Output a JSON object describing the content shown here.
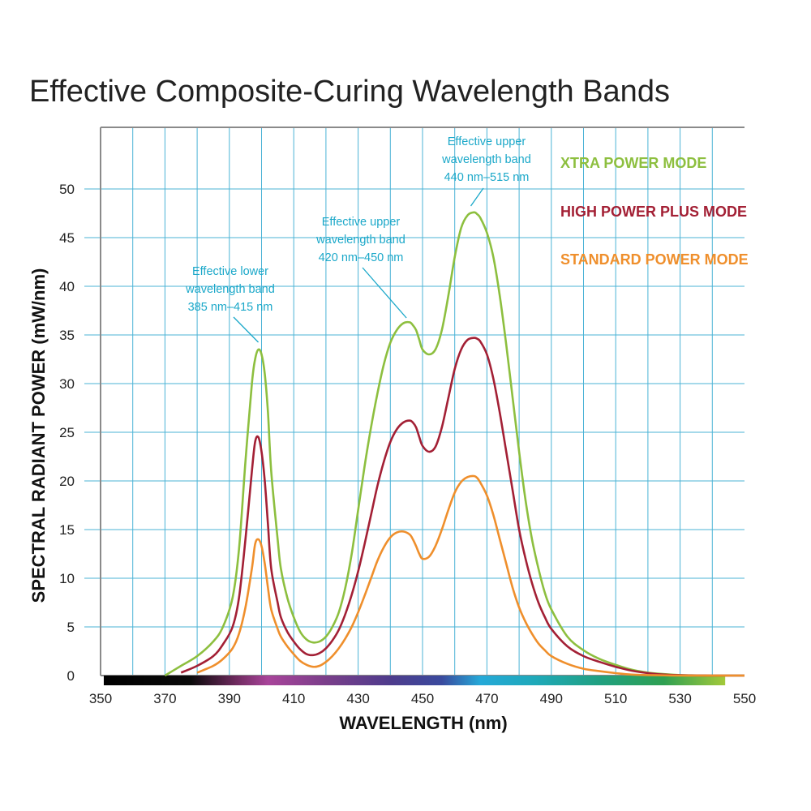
{
  "chart_data": {
    "type": "line",
    "title": "Effective Composite-Curing Wavelength Bands",
    "xlabel": "WAVELENGTH (nm)",
    "ylabel": "SPECTRAL RADIANT POWER (mW/nm)",
    "xlim": [
      350,
      550
    ],
    "ylim": [
      0,
      55
    ],
    "x_ticks": [
      "350",
      "370",
      "390",
      "410",
      "430",
      "450",
      "470",
      "490",
      "510",
      "530",
      "550"
    ],
    "y_ticks": [
      "0",
      "5",
      "10",
      "15",
      "20",
      "25",
      "30",
      "35",
      "40",
      "45",
      "50"
    ],
    "grid": true,
    "legend_position": "top-right",
    "colors": {
      "grid": "#4bb3d6",
      "axis": "#8a8a8a",
      "annotation": "#1ba8c9"
    },
    "series": [
      {
        "name": "XTRA POWER MODE",
        "color": "#8dbf3f",
        "x": [
          370,
          375,
          380,
          385,
          388,
          391,
          393,
          395,
          397,
          398,
          399,
          400,
          401,
          402,
          403,
          405,
          406,
          408,
          410,
          412,
          414,
          416,
          418,
          420,
          422,
          424,
          426,
          428,
          430,
          432,
          434,
          436,
          438,
          440,
          442,
          444,
          446,
          447,
          448,
          449,
          450,
          452,
          454,
          456,
          458,
          460,
          462,
          464,
          466,
          467,
          468,
          470,
          472,
          474,
          476,
          478,
          480,
          482,
          484,
          486,
          488,
          490,
          495,
          500,
          505,
          510,
          515,
          520,
          525,
          530,
          535,
          540,
          545,
          550
        ],
        "y": [
          0,
          1,
          2,
          3.5,
          5,
          8,
          13,
          22,
          30,
          32.5,
          33.5,
          33,
          31,
          27,
          21,
          14,
          11,
          8,
          6,
          4.5,
          3.7,
          3.4,
          3.5,
          4,
          5,
          6.5,
          9,
          12.5,
          17,
          21.5,
          25.5,
          29,
          32,
          34.2,
          35.5,
          36.2,
          36.3,
          36,
          35.5,
          34.5,
          33.5,
          33,
          33.5,
          35.5,
          39,
          43,
          46,
          47.3,
          47.6,
          47.4,
          47,
          45.5,
          43,
          39,
          34,
          28.5,
          23,
          18,
          14,
          11,
          8.5,
          6.8,
          4,
          2.6,
          1.7,
          1.1,
          0.6,
          0.3,
          0.15,
          0.05,
          0.02,
          0,
          0,
          0
        ]
      },
      {
        "name": "HIGH POWER PLUS MODE",
        "color": "#a32035",
        "x": [
          375,
          380,
          385,
          388,
          391,
          393,
          395,
          397,
          398,
          399,
          400,
          401,
          402,
          403,
          405,
          406,
          408,
          410,
          412,
          414,
          416,
          418,
          420,
          422,
          424,
          426,
          428,
          430,
          432,
          434,
          436,
          438,
          440,
          442,
          444,
          446,
          447,
          448,
          449,
          450,
          452,
          454,
          456,
          458,
          460,
          462,
          464,
          466,
          467,
          468,
          470,
          472,
          474,
          476,
          478,
          480,
          482,
          484,
          486,
          488,
          490,
          495,
          500,
          505,
          510,
          515,
          520,
          525,
          530,
          535,
          540,
          545,
          550
        ],
        "y": [
          0.3,
          1,
          2,
          3.2,
          5,
          8,
          14,
          21,
          24,
          24.5,
          23,
          20,
          15.5,
          11,
          7.5,
          6,
          4.5,
          3.5,
          2.7,
          2.2,
          2.1,
          2.3,
          2.8,
          3.6,
          4.7,
          6.3,
          8.3,
          10.7,
          13.5,
          16.5,
          19.5,
          22,
          24,
          25.3,
          26,
          26.2,
          26,
          25.5,
          24.5,
          23.6,
          23,
          23.5,
          25.5,
          28.5,
          31.5,
          33.5,
          34.5,
          34.7,
          34.6,
          34.3,
          33,
          30.5,
          27,
          23,
          19,
          15,
          12,
          9.5,
          7.5,
          6,
          4.8,
          3,
          2,
          1.4,
          0.9,
          0.5,
          0.25,
          0.1,
          0.04,
          0.01,
          0,
          0,
          0
        ]
      },
      {
        "name": "STANDARD POWER MODE",
        "color": "#ef8f2c",
        "x": [
          380,
          385,
          388,
          391,
          393,
          395,
          397,
          398,
          399,
          400,
          401,
          402,
          403,
          405,
          406,
          408,
          410,
          412,
          414,
          416,
          418,
          420,
          422,
          424,
          426,
          428,
          430,
          432,
          434,
          436,
          438,
          440,
          442,
          444,
          446,
          447,
          448,
          449,
          450,
          452,
          454,
          456,
          458,
          460,
          462,
          464,
          466,
          467,
          468,
          470,
          472,
          474,
          476,
          478,
          480,
          482,
          484,
          486,
          488,
          490,
          495,
          500,
          505,
          510,
          515,
          520,
          525,
          530,
          535,
          540,
          545,
          550
        ],
        "y": [
          0.3,
          1,
          1.7,
          2.8,
          4.3,
          7,
          11,
          13.5,
          14,
          13.3,
          11.5,
          9,
          6.8,
          4.8,
          4,
          3,
          2.2,
          1.5,
          1.1,
          0.9,
          1,
          1.4,
          2,
          2.8,
          3.8,
          5,
          6.5,
          8.2,
          10,
          11.8,
          13.2,
          14.2,
          14.7,
          14.8,
          14.5,
          14,
          13.3,
          12.5,
          12,
          12.2,
          13.3,
          15,
          17,
          18.8,
          19.9,
          20.4,
          20.5,
          20.3,
          19.8,
          18.5,
          16.5,
          14,
          11.5,
          9,
          7,
          5.5,
          4.3,
          3.3,
          2.6,
          2,
          1.2,
          0.7,
          0.45,
          0.25,
          0.1,
          0.05,
          0.02,
          0,
          0,
          0,
          0,
          0
        ]
      }
    ],
    "annotations": [
      {
        "lines": [
          "Effective lower",
          "wavelength band",
          "385 nm–415 nm"
        ],
        "target": [
          399,
          34
        ]
      },
      {
        "lines": [
          "Effective upper",
          "wavelength band",
          "420 nm–450 nm"
        ],
        "target": [
          446,
          36.5
        ]
      },
      {
        "lines": [
          "Effective upper",
          "wavelength band",
          "440 nm–515 nm"
        ],
        "target": [
          466,
          48
        ]
      }
    ],
    "spectrum_bar": {
      "stops": [
        {
          "nm": 351,
          "color": "#000000"
        },
        {
          "nm": 378,
          "color": "#0a0a0a"
        },
        {
          "nm": 392,
          "color": "#6e2a5e"
        },
        {
          "nm": 402,
          "color": "#a8449a"
        },
        {
          "nm": 420,
          "color": "#7a3e8a"
        },
        {
          "nm": 440,
          "color": "#4e3c8c"
        },
        {
          "nm": 456,
          "color": "#3a4a9e"
        },
        {
          "nm": 468,
          "color": "#25a9d8"
        },
        {
          "nm": 485,
          "color": "#1fa9b9"
        },
        {
          "nm": 505,
          "color": "#20a080"
        },
        {
          "nm": 525,
          "color": "#2fa052"
        },
        {
          "nm": 544,
          "color": "#a3c93a"
        }
      ]
    }
  }
}
